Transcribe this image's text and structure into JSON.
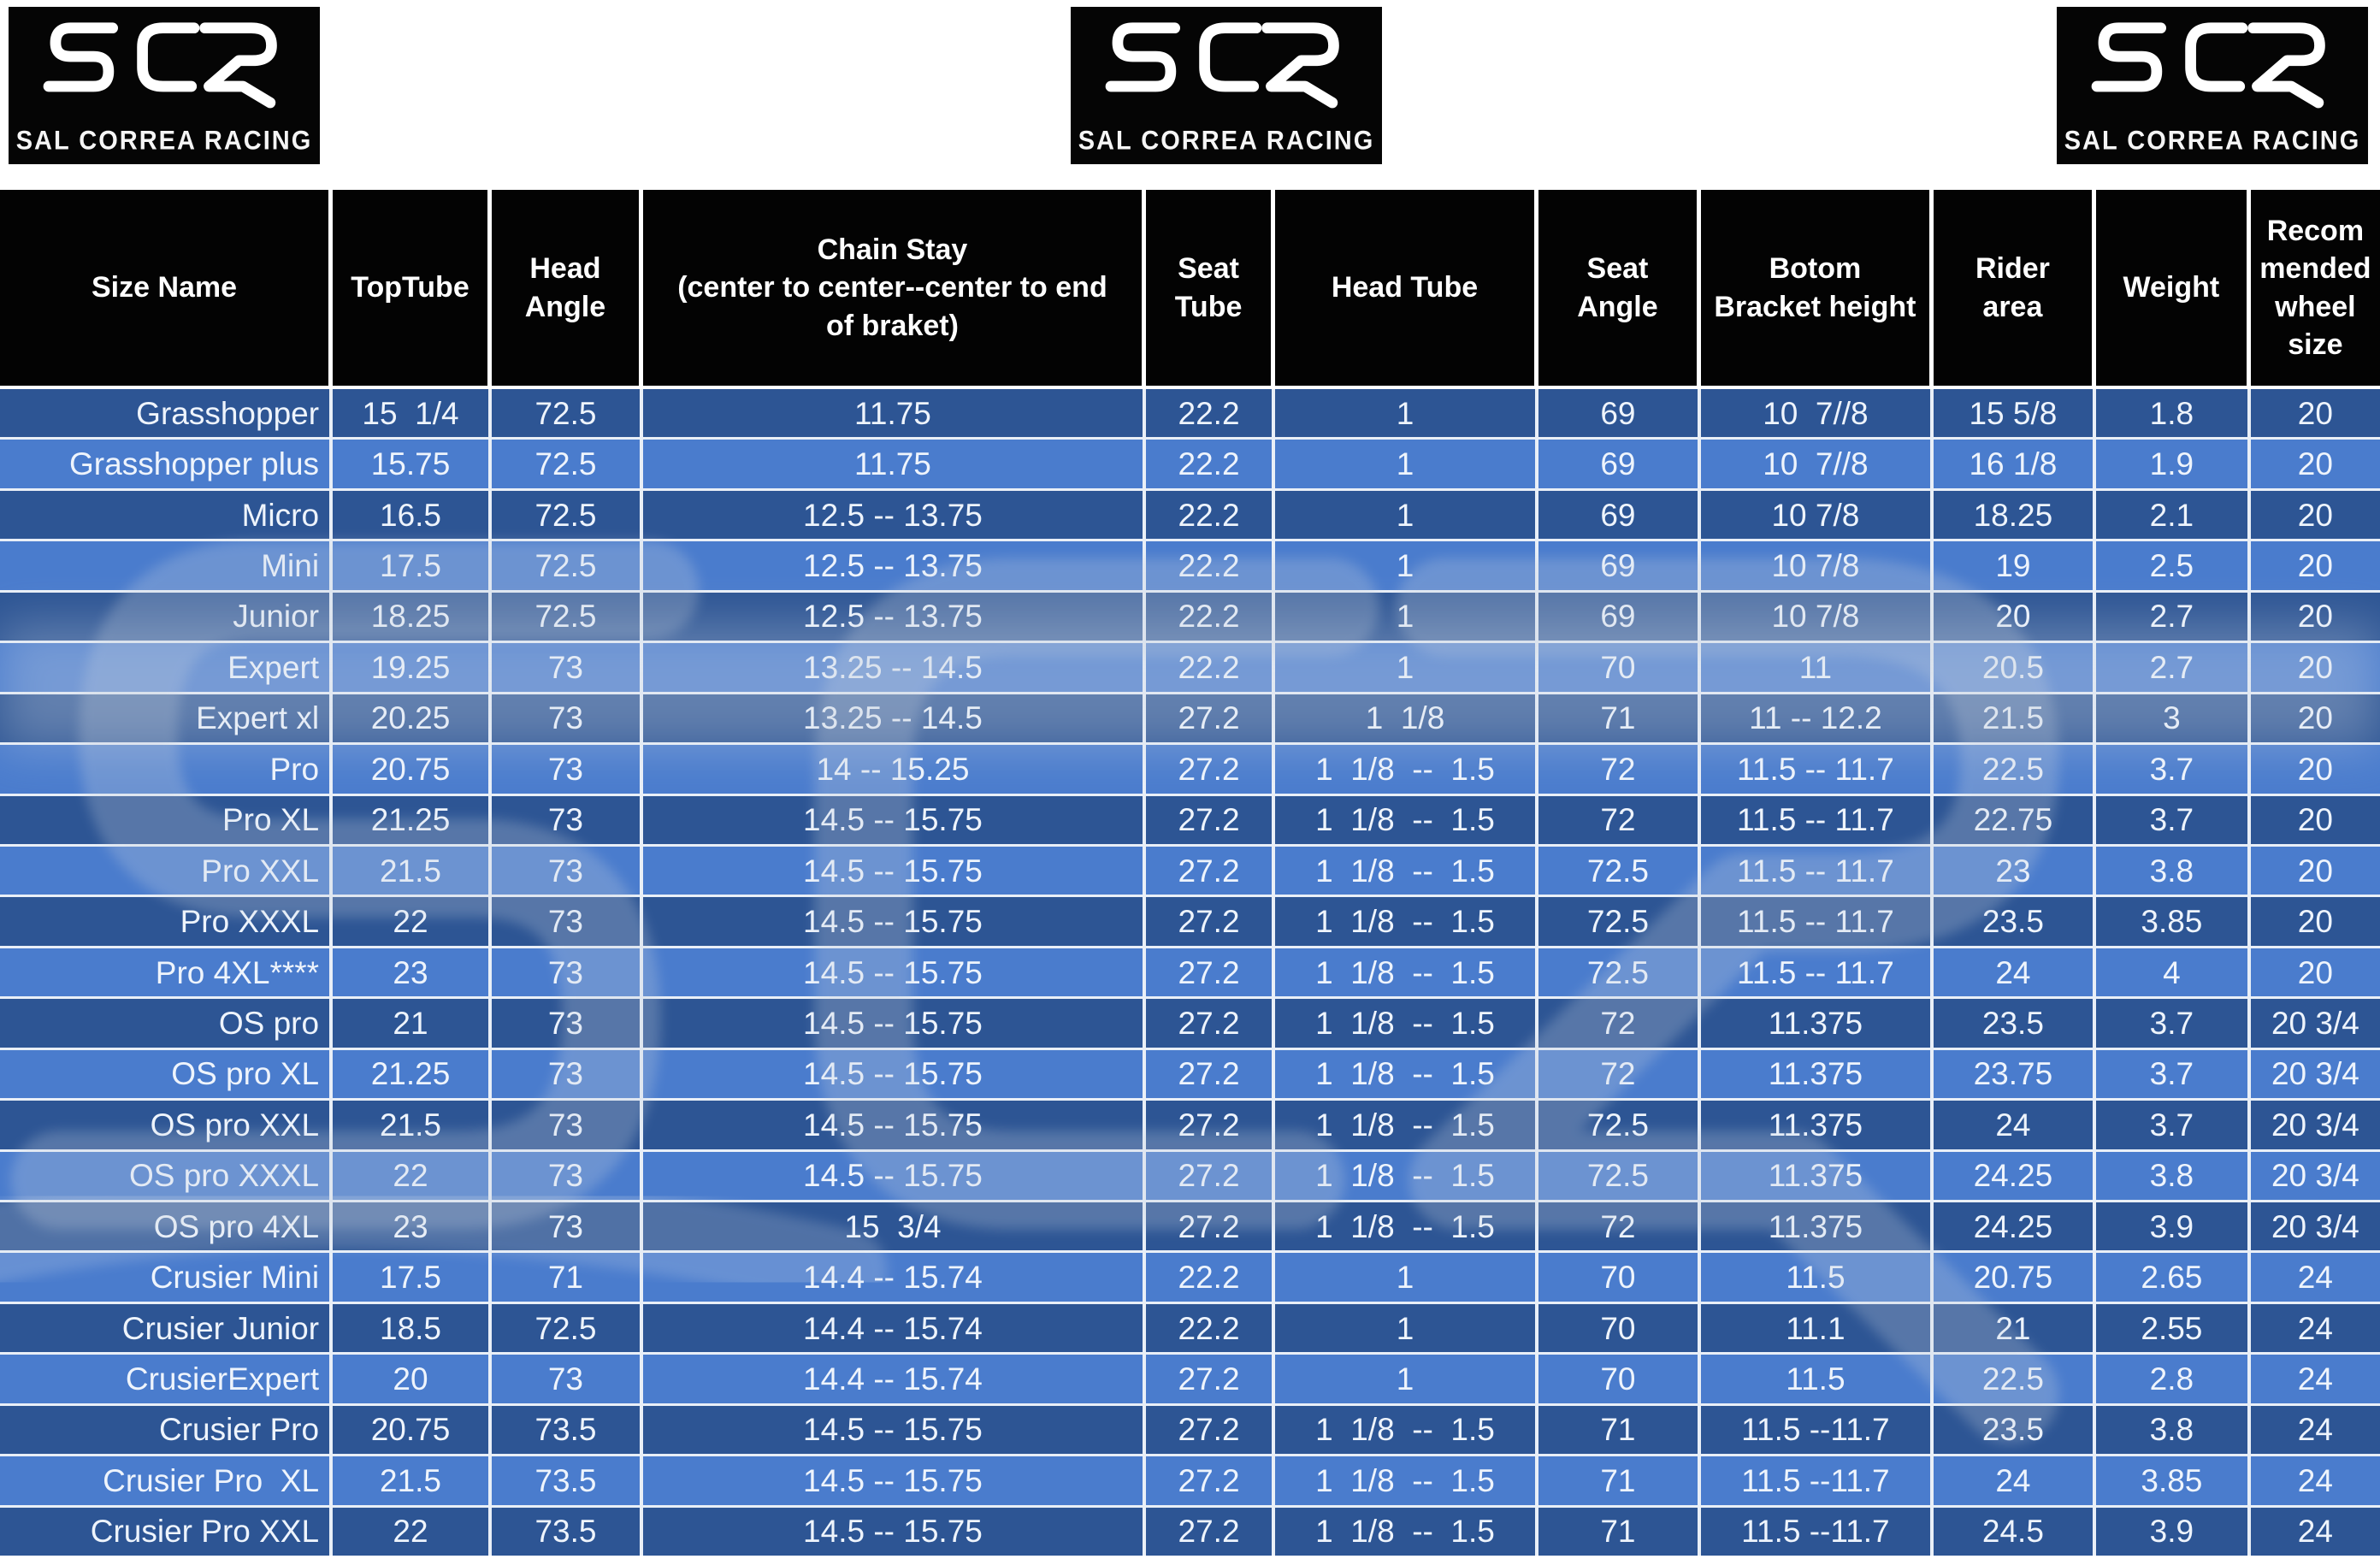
{
  "brand": {
    "logo_text": "SCR",
    "logo_subtitle": "SAL CORREA RACING"
  },
  "colors": {
    "row_dark": "#2d5594",
    "row_light": "#4a7ccd",
    "header_bg": "#030303",
    "grid_line": "#e9eff7",
    "cell_text": "#eef4fc"
  },
  "table": {
    "columns": [
      "Size Name",
      "TopTube",
      "Head Angle",
      "Chain Stay\n(center to center--center to end of braket)",
      "Seat Tube",
      "Head Tube",
      "Seat Angle",
      "Botom Bracket height",
      "Rider area",
      "Weight",
      "Recommended wheel size"
    ],
    "column_keys": [
      "size-name",
      "top-tube",
      "head-angle",
      "chain-stay",
      "seat-tube",
      "head-tube",
      "seat-angle",
      "bottom-bracket-height",
      "rider-area",
      "weight",
      "recommended-wheel-size"
    ],
    "rows": [
      [
        "Grasshopper",
        "15  1/4",
        "72.5",
        "11.75",
        "22.2",
        "1",
        "69",
        "10  7//8",
        "15 5/8",
        "1.8",
        "20"
      ],
      [
        "Grasshopper plus",
        "15.75",
        "72.5",
        "11.75",
        "22.2",
        "1",
        "69",
        "10  7//8",
        "16 1/8",
        "1.9",
        "20"
      ],
      [
        "Micro",
        "16.5",
        "72.5",
        "12.5 -- 13.75",
        "22.2",
        "1",
        "69",
        "10 7/8",
        "18.25",
        "2.1",
        "20"
      ],
      [
        "Mini",
        "17.5",
        "72.5",
        "12.5 -- 13.75",
        "22.2",
        "1",
        "69",
        "10 7/8",
        "19",
        "2.5",
        "20"
      ],
      [
        "Junior",
        "18.25",
        "72.5",
        "12.5 -- 13.75",
        "22.2",
        "1",
        "69",
        "10 7/8",
        "20",
        "2.7",
        "20"
      ],
      [
        "Expert",
        "19.25",
        "73",
        "13.25 -- 14.5",
        "22.2",
        "1",
        "70",
        "11",
        "20.5",
        "2.7",
        "20"
      ],
      [
        "Expert xl",
        "20.25",
        "73",
        "13.25 -- 14.5",
        "27.2",
        "1  1/8",
        "71",
        "11 -- 12.2",
        "21.5",
        "3",
        "20"
      ],
      [
        "Pro",
        "20.75",
        "73",
        "14 -- 15.25",
        "27.2",
        "1  1/8  --  1.5",
        "72",
        "11.5 -- 11.7",
        "22.5",
        "3.7",
        "20"
      ],
      [
        "Pro XL",
        "21.25",
        "73",
        "14.5 -- 15.75",
        "27.2",
        "1  1/8  --  1.5",
        "72",
        "11.5 -- 11.7",
        "22.75",
        "3.7",
        "20"
      ],
      [
        "Pro XXL",
        "21.5",
        "73",
        "14.5 -- 15.75",
        "27.2",
        "1  1/8  --  1.5",
        "72.5",
        "11.5 -- 11.7",
        "23",
        "3.8",
        "20"
      ],
      [
        "Pro XXXL",
        "22",
        "73",
        "14.5 -- 15.75",
        "27.2",
        "1  1/8  --  1.5",
        "72.5",
        "11.5 -- 11.7",
        "23.5",
        "3.85",
        "20"
      ],
      [
        "Pro 4XL****",
        "23",
        "73",
        "14.5 -- 15.75",
        "27.2",
        "1  1/8  --  1.5",
        "72.5",
        "11.5 -- 11.7",
        "24",
        "4",
        "20"
      ],
      [
        "OS pro",
        "21",
        "73",
        "14.5 -- 15.75",
        "27.2",
        "1  1/8  --  1.5",
        "72",
        "11.375",
        "23.5",
        "3.7",
        "20 3/4"
      ],
      [
        "OS pro XL",
        "21.25",
        "73",
        "14.5 -- 15.75",
        "27.2",
        "1  1/8  --  1.5",
        "72",
        "11.375",
        "23.75",
        "3.7",
        "20 3/4"
      ],
      [
        "OS pro XXL",
        "21.5",
        "73",
        "14.5 -- 15.75",
        "27.2",
        "1  1/8  --  1.5",
        "72.5",
        "11.375",
        "24",
        "3.7",
        "20 3/4"
      ],
      [
        "OS pro XXXL",
        "22",
        "73",
        "14.5 -- 15.75",
        "27.2",
        "1  1/8  --  1.5",
        "72.5",
        "11.375",
        "24.25",
        "3.8",
        "20 3/4"
      ],
      [
        "OS pro 4XL",
        "23",
        "73",
        "15  3/4",
        "27.2",
        "1  1/8  --  1.5",
        "72",
        "11.375",
        "24.25",
        "3.9",
        "20 3/4"
      ],
      [
        "Crusier Mini",
        "17.5",
        "71",
        "14.4 -- 15.74",
        "22.2",
        "1",
        "70",
        "11.5",
        "20.75",
        "2.65",
        "24"
      ],
      [
        "Crusier Junior",
        "18.5",
        "72.5",
        "14.4 -- 15.74",
        "22.2",
        "1",
        "70",
        "11.1",
        "21",
        "2.55",
        "24"
      ],
      [
        "CrusierExpert",
        "20",
        "73",
        "14.4 -- 15.74",
        "27.2",
        "1",
        "70",
        "11.5",
        "22.5",
        "2.8",
        "24"
      ],
      [
        "Crusier Pro",
        "20.75",
        "73.5",
        "14.5 -- 15.75",
        "27.2",
        "1  1/8  --  1.5",
        "71",
        "11.5 --11.7",
        "23.5",
        "3.8",
        "24"
      ],
      [
        "Crusier Pro  XL",
        "21.5",
        "73.5",
        "14.5 -- 15.75",
        "27.2",
        "1  1/8  --  1.5",
        "71",
        "11.5 --11.7",
        "24",
        "3.85",
        "24"
      ],
      [
        "Crusier Pro XXL",
        "22",
        "73.5",
        "14.5 -- 15.75",
        "27.2",
        "1  1/8  --  1.5",
        "71",
        "11.5 --11.7",
        "24.5",
        "3.9",
        "24"
      ]
    ]
  }
}
